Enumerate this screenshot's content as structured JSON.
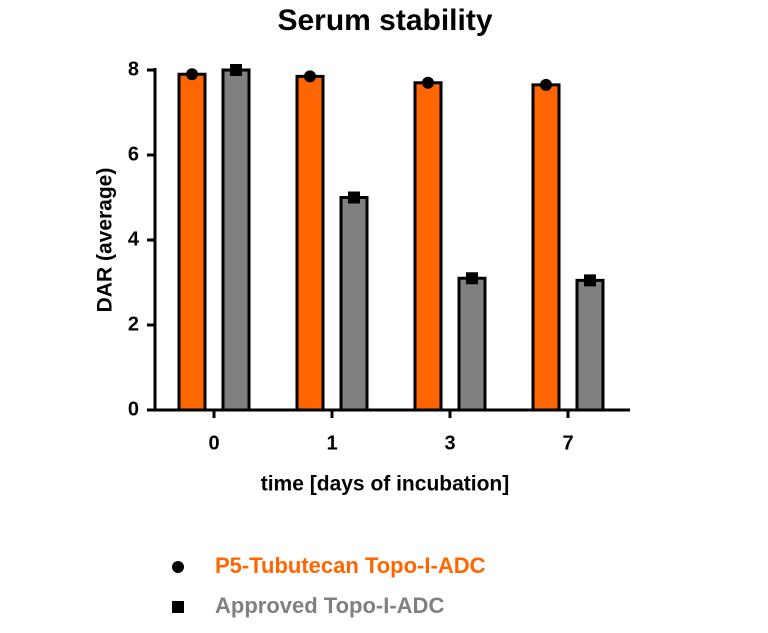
{
  "chart_data": {
    "type": "bar",
    "title": "Serum stability",
    "x_label": "time [days of incubation]",
    "y_label": "DAR (average)",
    "categories": [
      "0",
      "1",
      "3",
      "7"
    ],
    "series": [
      {
        "name": "P5-Tubutecan Topo-I-ADC",
        "color": "#ff6600",
        "marker": "circle",
        "values": [
          7.9,
          7.85,
          7.7,
          7.65
        ]
      },
      {
        "name": "Approved Topo-I-ADC",
        "color": "#808080",
        "marker": "square",
        "values": [
          8.0,
          5.0,
          3.1,
          3.05
        ]
      }
    ],
    "ylim": [
      0,
      8
    ],
    "yticks": [
      0,
      2,
      4,
      6,
      8
    ]
  }
}
